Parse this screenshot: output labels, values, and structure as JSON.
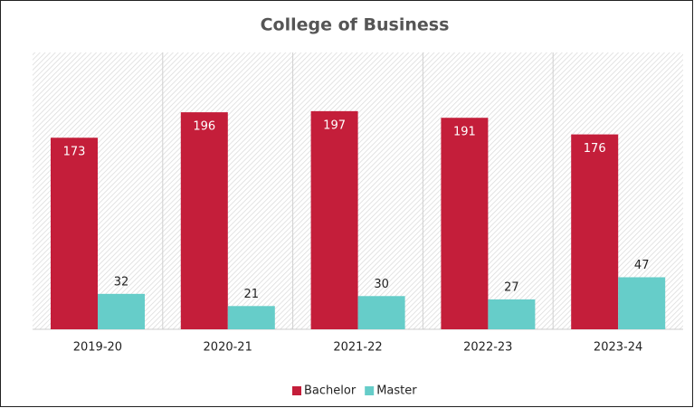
{
  "chart_data": {
    "type": "bar",
    "title": "College of Business",
    "categories": [
      "2019-20",
      "2020-21",
      "2021-22",
      "2022-23",
      "2023-24"
    ],
    "series": [
      {
        "name": "Bachelor",
        "color": "#c41e3a",
        "values": [
          173,
          196,
          197,
          191,
          176
        ]
      },
      {
        "name": "Master",
        "color": "#66cdc9",
        "values": [
          32,
          21,
          30,
          27,
          47
        ]
      }
    ],
    "ylim": [
      0,
      250
    ],
    "legend": "bottom"
  }
}
